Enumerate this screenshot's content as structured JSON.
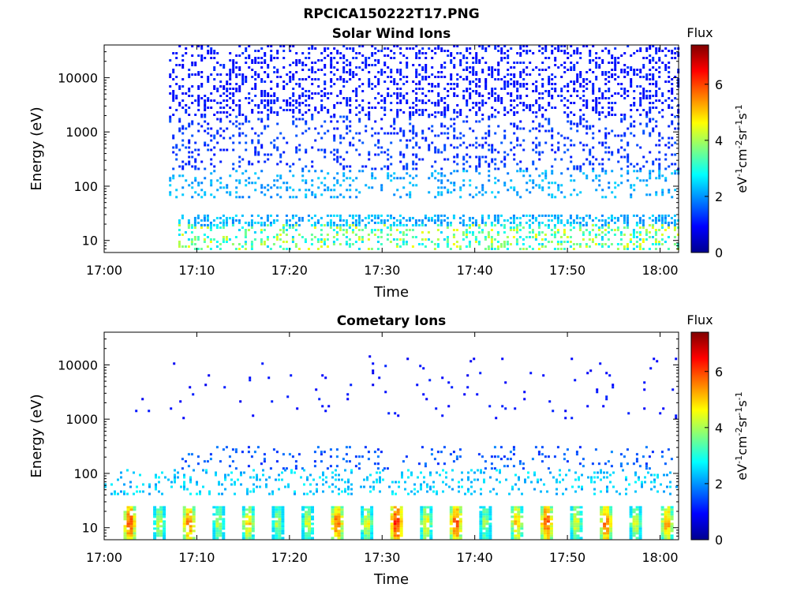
{
  "figure": {
    "title": "RPCICA150222T17.PNG"
  },
  "chart_data": [
    {
      "type": "heatmap",
      "title": "Solar Wind Ions",
      "xlabel": "Time",
      "ylabel": "Energy (eV)",
      "x_ticks": [
        "17:00",
        "17:10",
        "17:20",
        "17:30",
        "17:40",
        "17:50",
        "18:00"
      ],
      "xlim": [
        "17:00",
        "18:02"
      ],
      "y_scale": "log",
      "y_ticks": [
        10,
        100,
        1000,
        10000
      ],
      "y_tick_labels": [
        "10",
        "100",
        "1000",
        "10000"
      ],
      "ylim": [
        6,
        40000
      ],
      "colorbar": {
        "title": "Flux",
        "label": "eV-1cm-2sr-1s-1",
        "ticks": [
          0,
          2,
          4,
          6
        ],
        "tick_labels": [
          "0",
          "2",
          "4",
          "6"
        ],
        "range": [
          0,
          7.4
        ],
        "colormap": "jet"
      },
      "bands": [
        {
          "e_min": 2000,
          "e_max": 40000,
          "flux_min": 0.8,
          "flux_max": 1.3,
          "t_start": 7.0,
          "t_end": 62.0,
          "density": 0.3
        },
        {
          "e_min": 200,
          "e_max": 2000,
          "flux_min": 1.0,
          "flux_max": 1.6,
          "t_start": 7.0,
          "t_end": 62.0,
          "density": 0.2
        },
        {
          "e_min": 60,
          "e_max": 200,
          "flux_min": 1.8,
          "flux_max": 2.5,
          "t_start": 7.0,
          "t_end": 62.0,
          "density": 0.2
        },
        {
          "e_min": 20,
          "e_max": 30,
          "flux_min": 1.8,
          "flux_max": 2.6,
          "t_start": 8.0,
          "t_end": 62.0,
          "density": 0.45
        },
        {
          "e_min": 7,
          "e_max": 20,
          "flux_min": 2.4,
          "flux_max": 4.6,
          "t_start": 8.0,
          "t_end": 62.0,
          "density": 0.3
        }
      ]
    },
    {
      "type": "heatmap",
      "title": "Cometary Ions",
      "xlabel": "Time",
      "ylabel": "Energy (eV)",
      "x_ticks": [
        "17:00",
        "17:10",
        "17:20",
        "17:30",
        "17:40",
        "17:50",
        "18:00"
      ],
      "xlim": [
        "17:00",
        "18:02"
      ],
      "y_scale": "log",
      "y_ticks": [
        10,
        100,
        1000,
        10000
      ],
      "y_tick_labels": [
        "10",
        "100",
        "1000",
        "10000"
      ],
      "ylim": [
        6,
        40000
      ],
      "colorbar": {
        "title": "Flux",
        "label": "eV-1cm-2sr-1s-1",
        "ticks": [
          0,
          2,
          4,
          6
        ],
        "tick_labels": [
          "0",
          "2",
          "4",
          "6"
        ],
        "range": [
          0,
          7.4
        ],
        "colormap": "jet"
      },
      "bands": [
        {
          "e_min": 1000,
          "e_max": 15000,
          "flux_min": 0.8,
          "flux_max": 1.2,
          "t_start": 3.0,
          "t_end": 62.0,
          "density": 0.02
        },
        {
          "e_min": 120,
          "e_max": 320,
          "flux_min": 1.2,
          "flux_max": 1.9,
          "t_start": 8.0,
          "t_end": 62.0,
          "density": 0.12
        },
        {
          "e_min": 40,
          "e_max": 120,
          "flux_min": 2.0,
          "flux_max": 2.8,
          "t_start": 0.0,
          "t_end": 62.0,
          "density": 0.2
        }
      ],
      "bursts": [
        {
          "t": 2.6,
          "flux_peak": 6.8
        },
        {
          "t": 5.8,
          "flux_peak": 5.2
        },
        {
          "t": 9.0,
          "flux_peak": 6.6
        },
        {
          "t": 12.2,
          "flux_peak": 5.0
        },
        {
          "t": 15.4,
          "flux_peak": 5.8
        },
        {
          "t": 18.6,
          "flux_peak": 5.0
        },
        {
          "t": 21.8,
          "flux_peak": 5.2
        },
        {
          "t": 25.0,
          "flux_peak": 6.6
        },
        {
          "t": 28.2,
          "flux_peak": 5.4
        },
        {
          "t": 31.4,
          "flux_peak": 7.2
        },
        {
          "t": 34.6,
          "flux_peak": 5.6
        },
        {
          "t": 37.8,
          "flux_peak": 6.8
        },
        {
          "t": 41.0,
          "flux_peak": 5.0
        },
        {
          "t": 44.4,
          "flux_peak": 6.0
        },
        {
          "t": 47.6,
          "flux_peak": 6.8
        },
        {
          "t": 50.8,
          "flux_peak": 5.4
        },
        {
          "t": 54.0,
          "flux_peak": 6.6
        },
        {
          "t": 57.2,
          "flux_peak": 5.2
        },
        {
          "t": 60.6,
          "flux_peak": 6.2
        }
      ]
    }
  ]
}
